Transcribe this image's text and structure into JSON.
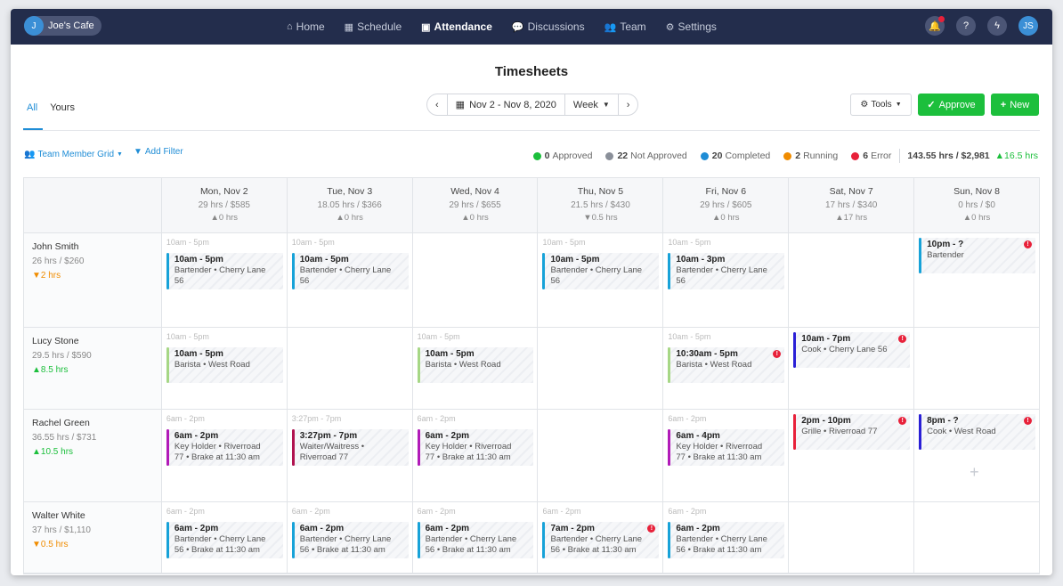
{
  "app": {
    "brand_initial": "J",
    "brand_name": "Joe's Cafe",
    "user_initials": "JS"
  },
  "nav": [
    {
      "icon": "home-icon",
      "glyph": "⌂",
      "label": "Home"
    },
    {
      "icon": "calendar-icon",
      "glyph": "▦",
      "label": "Schedule"
    },
    {
      "icon": "attendance-icon",
      "glyph": "▣",
      "label": "Attendance"
    },
    {
      "icon": "chat-icon",
      "glyph": "💬",
      "label": "Discussions"
    },
    {
      "icon": "team-icon",
      "glyph": "👥",
      "label": "Team"
    },
    {
      "icon": "gear-icon",
      "glyph": "⚙",
      "label": "Settings"
    }
  ],
  "page": {
    "title": "Timesheets"
  },
  "tabs": {
    "all": "All",
    "yours": "Yours"
  },
  "date": {
    "range": "Nov 2 - Nov 8, 2020",
    "period": "Week"
  },
  "toolbar": {
    "tools": "Tools",
    "approve": "Approve",
    "new": "New"
  },
  "filters": {
    "view": "Team Member Grid",
    "add_filter": "Add Filter"
  },
  "stats": {
    "approved": {
      "count": "0",
      "label": "Approved",
      "color": "#1cbf3c"
    },
    "not_approved": {
      "count": "22",
      "label": "Not Approved",
      "color": "#8a8f99"
    },
    "completed": {
      "count": "20",
      "label": "Completed",
      "color": "#1f8dd6"
    },
    "running": {
      "count": "2",
      "label": "Running",
      "color": "#f08c00"
    },
    "error": {
      "count": "6",
      "label": "Error",
      "color": "#e8213a"
    },
    "total": "143.55 hrs / $2,981",
    "total_delta": "▲16.5 hrs"
  },
  "days": [
    {
      "date": "Mon, Nov 2",
      "hours": "29 hrs / $585",
      "delta": "▲0 hrs",
      "tone": "grey"
    },
    {
      "date": "Tue, Nov 3",
      "hours": "18.05 hrs / $366",
      "delta": "▲0 hrs",
      "tone": "grey"
    },
    {
      "date": "Wed, Nov 4",
      "hours": "29 hrs / $655",
      "delta": "▲0 hrs",
      "tone": "grey"
    },
    {
      "date": "Thu, Nov 5",
      "hours": "21.5 hrs / $430",
      "delta": "▼0.5 hrs",
      "tone": "orange"
    },
    {
      "date": "Fri, Nov 6",
      "hours": "29 hrs / $605",
      "delta": "▲0 hrs",
      "tone": "grey"
    },
    {
      "date": "Sat, Nov 7",
      "hours": "17 hrs / $340",
      "delta": "▲17 hrs",
      "tone": "green"
    },
    {
      "date": "Sun, Nov 8",
      "hours": "0 hrs / $0",
      "delta": "▲0 hrs",
      "tone": "grey"
    }
  ],
  "members": [
    {
      "name": "John Smith",
      "hours": "26 hrs / $260",
      "delta": "▼2 hrs",
      "tone": "orange",
      "row_height": 106,
      "cells": [
        {
          "sched": "10am - 5pm",
          "time": "10am - 5pm",
          "detail": "Bartender • Cherry Lane 56",
          "color": "#17a2d8"
        },
        {
          "sched": "10am - 5pm",
          "time": "10am - 5pm",
          "detail": "Bartender • Cherry Lane 56",
          "color": "#17a2d8"
        },
        null,
        {
          "sched": "10am - 5pm",
          "time": "10am - 5pm",
          "detail": "Bartender • Cherry Lane 56",
          "color": "#17a2d8"
        },
        {
          "sched": "10am - 5pm",
          "time": "10am - 3pm",
          "detail": "Bartender • Cherry Lane 56",
          "color": "#17a2d8"
        },
        null,
        {
          "sched": "",
          "time": "10pm - ?",
          "detail": "Bartender",
          "color": "#17a2d8",
          "error": true
        }
      ]
    },
    {
      "name": "Lucy Stone",
      "hours": "29.5 hrs / $590",
      "delta": "▲8.5 hrs",
      "tone": "green",
      "row_height": 92,
      "cells": [
        {
          "sched": "10am - 5pm",
          "time": "10am - 5pm",
          "detail": "Barista • West Road",
          "color": "#a6d785"
        },
        null,
        {
          "sched": "10am - 5pm",
          "time": "10am - 5pm",
          "detail": "Barista • West Road",
          "color": "#a6d785"
        },
        null,
        {
          "sched": "10am - 5pm",
          "time": "10:30am - 5pm",
          "detail": "Barista • West Road",
          "color": "#a6d785",
          "error": true
        },
        {
          "sched": "",
          "time": "10am - 7pm",
          "detail": "Cook • Cherry Lane 56",
          "color": "#2a1fd6",
          "error": true
        },
        null
      ]
    },
    {
      "name": "Rachel Green",
      "hours": "36.55 hrs / $731",
      "delta": "▲10.5 hrs",
      "tone": "green",
      "row_height": 104,
      "cells": [
        {
          "sched": "6am - 2pm",
          "time": "6am - 2pm",
          "detail": "Key Holder • Riverroad 77 • Brake at 11:30 am",
          "color": "#b11ab8"
        },
        {
          "sched": "3:27pm - 7pm",
          "time": "3:27pm - 7pm",
          "detail": "Waiter/Waitress • Riverroad 77",
          "color": "#b0124f"
        },
        {
          "sched": "6am - 2pm",
          "time": "6am - 2pm",
          "detail": "Key Holder • Riverroad 77 • Brake at 11:30 am",
          "color": "#b11ab8"
        },
        null,
        {
          "sched": "6am - 2pm",
          "time": "6am - 4pm",
          "detail": "Key Holder • Riverroad 77 • Brake at 11:30 am",
          "color": "#b11ab8"
        },
        {
          "sched": "",
          "time": "2pm - 10pm",
          "detail": "Grille • Riverroad 77",
          "color": "#e8213a",
          "error": true
        },
        {
          "sched": "",
          "time": "8pm - ?",
          "detail": "Cook • West Road",
          "color": "#2a1fd6",
          "error": true,
          "plus": "+"
        }
      ]
    },
    {
      "name": "Walter White",
      "hours": "37 hrs / $1,110",
      "delta": "▼0.5 hrs",
      "tone": "orange",
      "row_height": 80,
      "cells": [
        {
          "sched": "6am - 2pm",
          "time": "6am - 2pm",
          "detail": "Bartender • Cherry Lane 56 • Brake at 11:30 am",
          "color": "#17a2d8"
        },
        {
          "sched": "6am - 2pm",
          "time": "6am - 2pm",
          "detail": "Bartender • Cherry Lane 56 • Brake at 11:30 am",
          "color": "#17a2d8"
        },
        {
          "sched": "6am - 2pm",
          "time": "6am - 2pm",
          "detail": "Bartender • Cherry Lane 56 • Brake at 11:30 am",
          "color": "#17a2d8"
        },
        {
          "sched": "6am - 2pm",
          "time": "7am - 2pm",
          "detail": "Bartender • Cherry Lane 56 • Brake at 11:30 am",
          "color": "#17a2d8",
          "error": true
        },
        {
          "sched": "6am - 2pm",
          "time": "6am - 2pm",
          "detail": "Bartender • Cherry Lane 56 • Brake at 11:30 am",
          "color": "#17a2d8"
        },
        null,
        null
      ]
    }
  ]
}
